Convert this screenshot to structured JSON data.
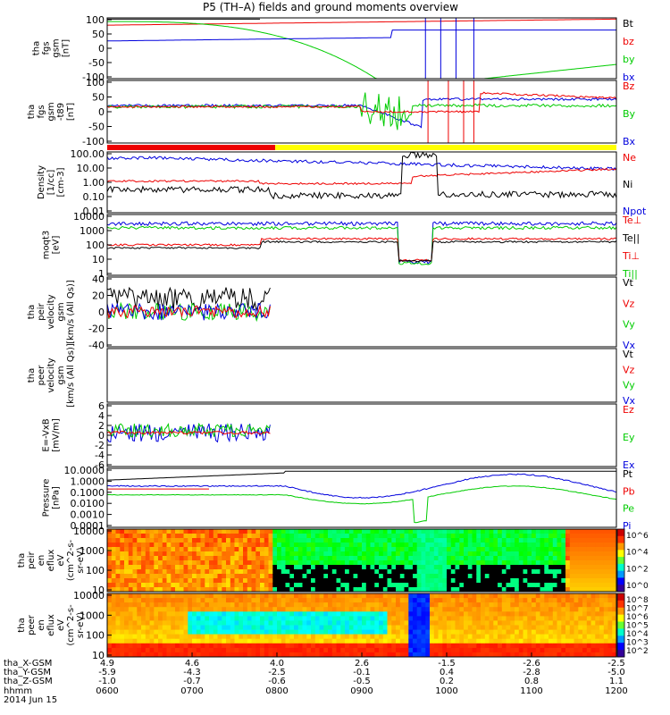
{
  "title": "P5 (TH–A) fields and ground moments overview",
  "colors": {
    "black": "#000000",
    "red": "#ee0000",
    "green": "#00cc00",
    "blue": "#0000dd",
    "mode_red": "#ee0000",
    "mode_yellow": "#ffff00"
  },
  "chart_data": [
    {
      "id": "fgs",
      "type": "line",
      "ylabel_lines": [
        "tha",
        "fgs",
        "gsm",
        "[nT]"
      ],
      "yticks": [
        "100",
        "50",
        "0",
        "-50",
        "-100"
      ],
      "legend": [
        {
          "label": "Bt",
          "color": "#000000"
        },
        {
          "label": "bz",
          "color": "#ee0000"
        },
        {
          "label": "by",
          "color": "#00cc00"
        },
        {
          "label": "bx",
          "color": "#0000dd"
        }
      ]
    },
    {
      "id": "fgs_dipole",
      "type": "line",
      "ylabel_lines": [
        "tha",
        "fgs",
        "gsm",
        "-t89",
        "[nT]"
      ],
      "yticks": [
        "100",
        "50",
        "0",
        "-50",
        "-100"
      ],
      "legend": [
        {
          "label": "Bz",
          "color": "#ee0000"
        },
        {
          "label": "By",
          "color": "#00cc00"
        },
        {
          "label": "Bx",
          "color": "#0000dd"
        }
      ]
    },
    {
      "id": "density",
      "type": "line",
      "ylabel_lines": [
        "Density",
        "[1/cc]",
        "[cm-3]"
      ],
      "yticks": [
        "100.00",
        "10.00",
        "1.00",
        "0.10",
        "0.01"
      ],
      "legend": [
        {
          "label": "Ne",
          "color": "#ee0000"
        },
        {
          "label": "Ni",
          "color": "#000000"
        },
        {
          "label": "Npot",
          "color": "#0000dd"
        }
      ]
    },
    {
      "id": "temperature",
      "type": "line",
      "ylabel_lines": [
        "moqt3",
        "[eV]"
      ],
      "yticks": [
        "10000",
        "1000",
        "100",
        "10",
        "1"
      ],
      "legend": [
        {
          "label": "Te⊥",
          "color": "#ee0000"
        },
        {
          "label": "Te||",
          "color": "#000000"
        },
        {
          "label": "Ti⊥",
          "color": "#ee0000"
        },
        {
          "label": "Ti||",
          "color": "#00cc00"
        }
      ]
    },
    {
      "id": "peir_velocity",
      "type": "line",
      "ylabel_lines": [
        "tha",
        "peir",
        "velocity",
        "gsm",
        "[km/s (All Qs)]"
      ],
      "yticks": [
        "40",
        "20",
        "0",
        "-20",
        "-40"
      ],
      "legend": [
        {
          "label": "Vt",
          "color": "#000000"
        },
        {
          "label": "Vz",
          "color": "#ee0000"
        },
        {
          "label": "Vy",
          "color": "#00cc00"
        },
        {
          "label": "Vx",
          "color": "#0000dd"
        }
      ]
    },
    {
      "id": "peer_velocity",
      "type": "line",
      "ylabel_lines": [
        "tha",
        "peer",
        "velocity",
        "gsm",
        "[km/s (All Qs)]"
      ],
      "yticks": [],
      "legend": [
        {
          "label": "Vt",
          "color": "#000000"
        },
        {
          "label": "Vz",
          "color": "#ee0000"
        },
        {
          "label": "Vy",
          "color": "#00cc00"
        },
        {
          "label": "Vx",
          "color": "#0000dd"
        }
      ]
    },
    {
      "id": "efield",
      "type": "line",
      "ylabel_lines": [
        "E=-VxB",
        "[mV/m]"
      ],
      "yticks": [
        "6",
        "4",
        "2",
        "0",
        "-2",
        "-4",
        "-6"
      ],
      "legend": [
        {
          "label": "Ez",
          "color": "#ee0000"
        },
        {
          "label": "Ey",
          "color": "#00cc00"
        },
        {
          "label": "Ex",
          "color": "#0000dd"
        }
      ]
    },
    {
      "id": "pressure",
      "type": "line",
      "ylabel_lines": [
        "Pressure",
        "[nPa]"
      ],
      "yticks": [
        "10.0000",
        "1.0000",
        "0.1000",
        "0.0100",
        "0.0010",
        "0.0001"
      ],
      "legend": [
        {
          "label": "Pt",
          "color": "#000000"
        },
        {
          "label": "Pb",
          "color": "#ee0000"
        },
        {
          "label": "Pe",
          "color": "#00cc00"
        },
        {
          "label": "Pi",
          "color": "#0000dd"
        }
      ]
    },
    {
      "id": "peir_eflux",
      "type": "heatmap",
      "ylabel_lines": [
        "tha",
        "peir",
        "en",
        "eflux",
        "eV",
        "(cm^2-s-",
        "sr-eV)"
      ],
      "yticks": [
        "10000",
        "1000",
        "100",
        "10"
      ],
      "colorbar_ticks": [
        "10^6",
        "10^4",
        "10^2",
        "10^0"
      ]
    },
    {
      "id": "peer_eflux",
      "type": "heatmap",
      "ylabel_lines": [
        "tha",
        "peer",
        "en",
        "eflux",
        "eV",
        "(cm^2-s-",
        "sr-eV)"
      ],
      "yticks": [
        "10000",
        "1000",
        "100",
        "10"
      ],
      "colorbar_ticks": [
        "10^8",
        "10^7",
        "10^6",
        "10^5",
        "10^4",
        "10^3",
        "10^2"
      ]
    }
  ],
  "xaxis": {
    "row_labels": [
      "tha_X-GSM",
      "tha_Y-GSM",
      "tha_Z-GSM",
      "hhmm",
      "2014 Jun 15"
    ],
    "x_gsm": [
      "4.9",
      "4.6",
      "4.0",
      "2.6",
      "-1.5",
      "-2.6",
      "-2.5"
    ],
    "y_gsm": [
      "-5.9",
      "-4.3",
      "-2.5",
      "-0.1",
      "0.4",
      "-2.8",
      "-5.0"
    ],
    "z_gsm": [
      "-1.0",
      "-0.7",
      "-0.6",
      "-0.5",
      "0.2",
      "0.8",
      "1.1"
    ],
    "hhmm": [
      "0600",
      "0700",
      "0800",
      "0900",
      "1000",
      "1100",
      "1200"
    ]
  }
}
